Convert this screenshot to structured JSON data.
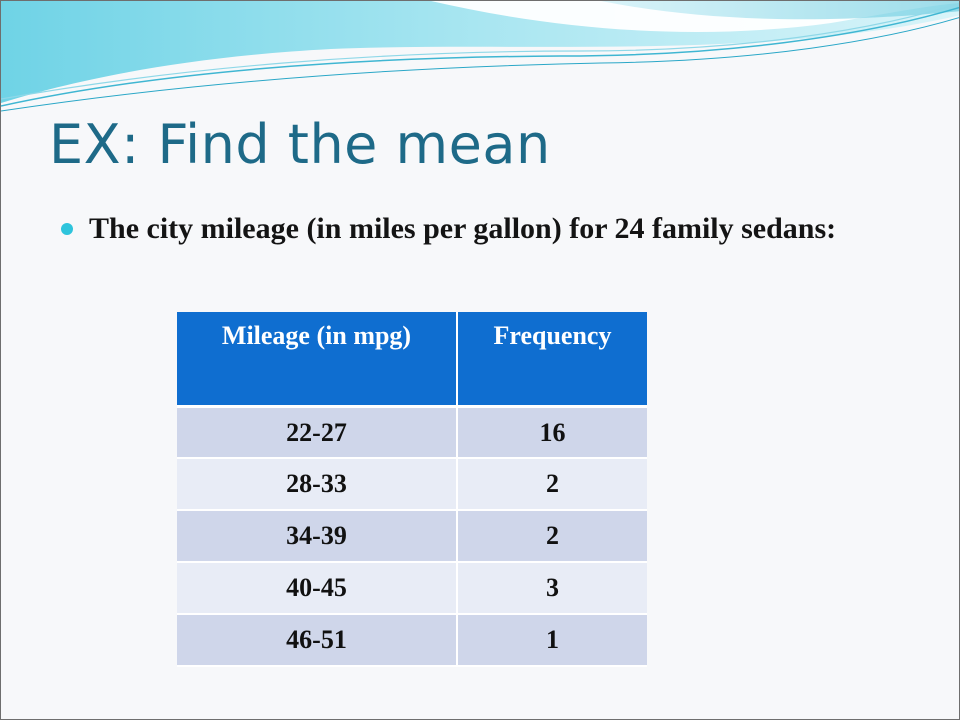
{
  "slide": {
    "title": "EX:  Find the mean",
    "bullet": "The city mileage (in miles per gallon) for 24 family sedans:"
  },
  "table": {
    "headers": [
      "Mileage (in mpg)",
      "Frequency"
    ],
    "rows": [
      [
        "22-27",
        "16"
      ],
      [
        "28-33",
        "2"
      ],
      [
        "34-39",
        "2"
      ],
      [
        "40-45",
        "3"
      ],
      [
        "46-51",
        "1"
      ]
    ]
  },
  "colors": {
    "title": "#1e6a88",
    "bullet_dot": "#2ec4dc",
    "header_fill": "#0f6ed0",
    "row_dark": "#cfd6ea",
    "row_light": "#e8ecf6"
  }
}
